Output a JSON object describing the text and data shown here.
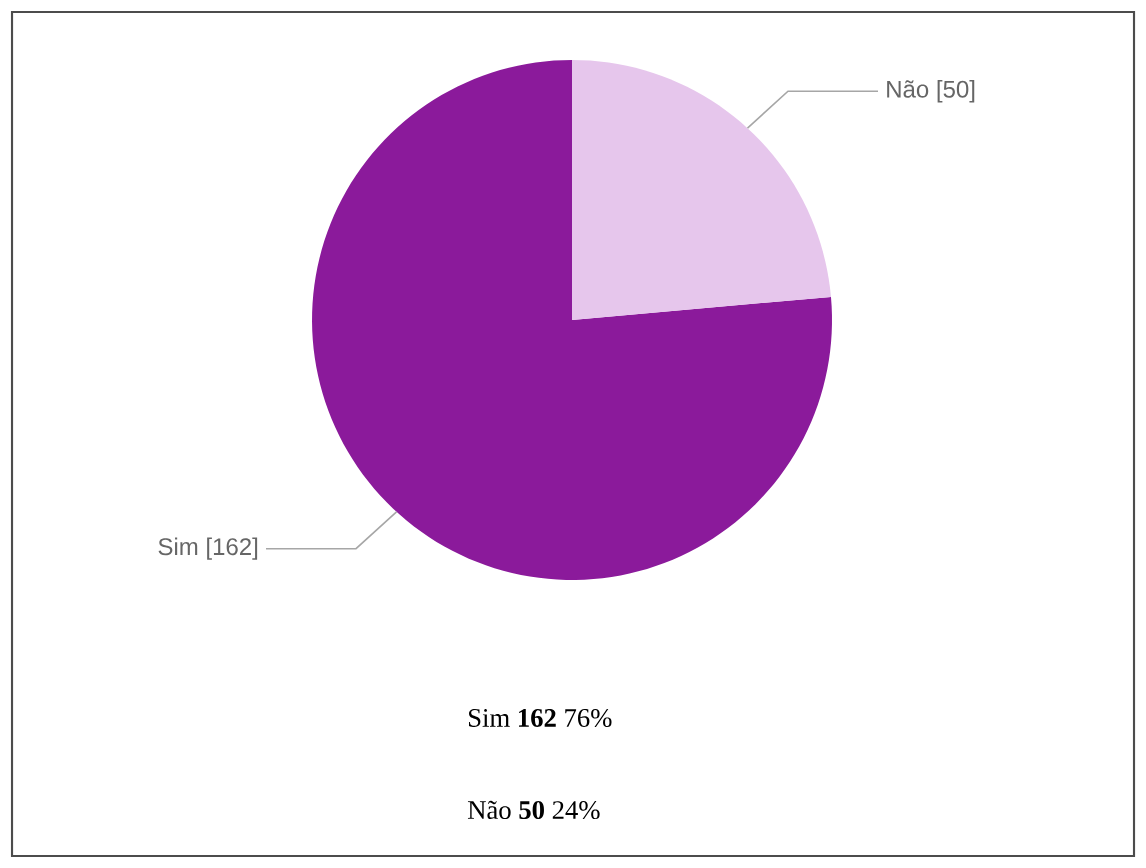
{
  "chart_data": {
    "type": "pie",
    "categories": [
      "Sim",
      "Não"
    ],
    "values": [
      162,
      50
    ],
    "colors": [
      "#8b1a9b",
      "#e6c6ec"
    ],
    "value_labels": [
      "[162]",
      "[50]"
    ],
    "annotations": [
      "Sim     **162** 76%",
      "Não       **50** 24%"
    ]
  }
}
